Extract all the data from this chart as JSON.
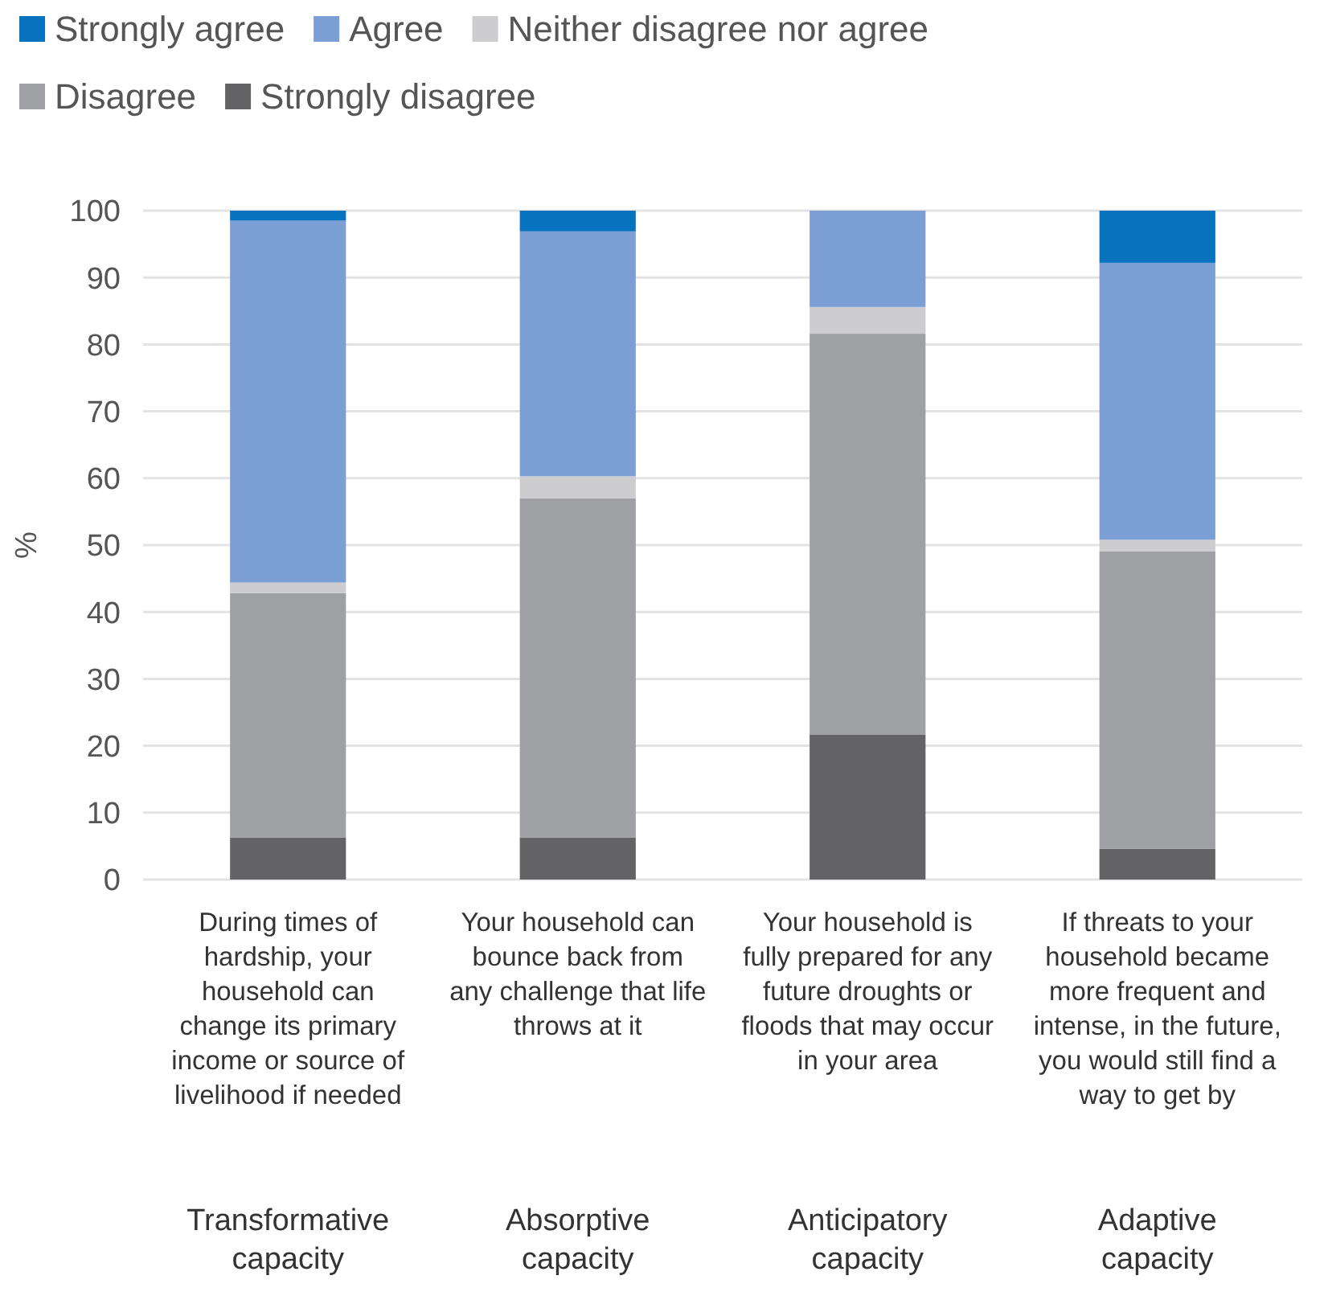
{
  "chart_data": {
    "type": "bar",
    "stacked": true,
    "ylabel": "%",
    "categories": [
      "During times of hardship, your household can change its primary income or source of livelihood if needed",
      "Your household can bounce back from any challenge that life throws at it",
      "Your household is fully prepared for any future droughts or floods that may occur in your area",
      "If threats to your household became more frequent and intense, in the future, you would still find a way to get by"
    ],
    "series": [
      {
        "name": "Strongly disagree",
        "color": "#636365",
        "values": [
          6.3,
          6.3,
          21.7,
          4.6
        ]
      },
      {
        "name": "Disagree",
        "color": "#9fa0a4",
        "values": [
          36.5,
          50.7,
          59.9,
          44.5
        ]
      },
      {
        "name": "Neither disagree nor agree",
        "color": "#cdcdcf",
        "values": [
          1.6,
          3.3,
          4.0,
          1.7
        ]
      },
      {
        "name": "Agree",
        "color": "#7b9fd4",
        "values": [
          54.1,
          36.6,
          14.4,
          41.4
        ]
      },
      {
        "name": "Strongly agree",
        "color": "#0773bf",
        "values": [
          1.5,
          3.1,
          0,
          7.8
        ]
      }
    ],
    "annotations": [
      "Transformative capacity",
      "Absorptive capacity",
      "Anticipatory capacity",
      "Adaptive capacity"
    ],
    "ylim": [
      0,
      100
    ],
    "yticks": [
      0,
      10,
      20,
      30,
      40,
      50,
      60,
      70,
      80,
      90,
      100
    ],
    "grid": "y",
    "legend": "top"
  }
}
